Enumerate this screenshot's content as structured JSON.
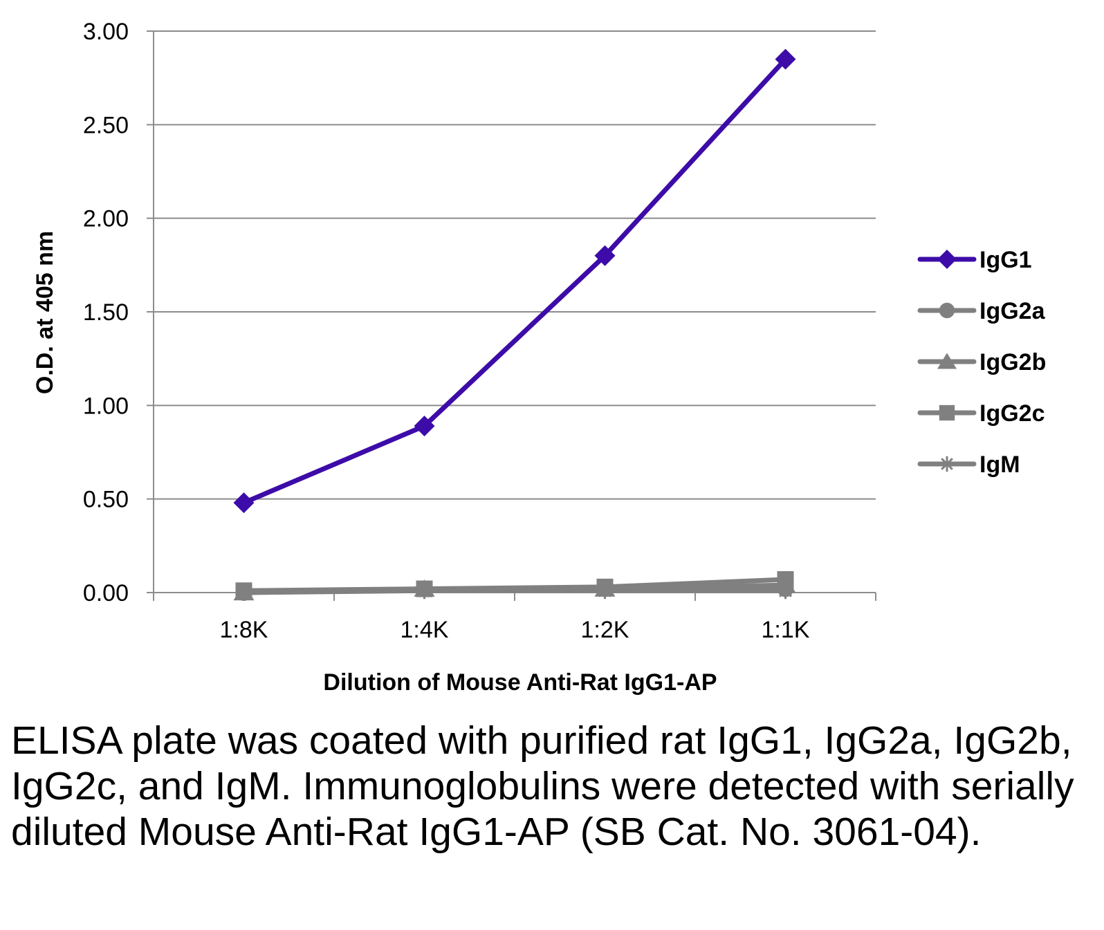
{
  "chart_data": {
    "type": "line",
    "title": "",
    "xlabel": "Dilution of Mouse Anti-Rat IgG1-AP",
    "ylabel": "O.D. at 405 nm",
    "categories": [
      "1:8K",
      "1:4K",
      "1:2K",
      "1:1K"
    ],
    "ylim": [
      0,
      3
    ],
    "yticks": [
      "0.00",
      "0.50",
      "1.00",
      "1.50",
      "2.00",
      "2.50",
      "3.00"
    ],
    "grid": "horizontal",
    "legend": "right",
    "series": [
      {
        "name": "IgG1",
        "marker": "diamond",
        "color": "#3d0ca8",
        "values": [
          0.48,
          0.89,
          1.8,
          2.85
        ]
      },
      {
        "name": "IgG2a",
        "marker": "circle",
        "color": "#808080",
        "values": [
          0.0,
          0.02,
          0.02,
          0.02
        ]
      },
      {
        "name": "IgG2b",
        "marker": "triangle",
        "color": "#808080",
        "values": [
          0.0,
          0.02,
          0.02,
          0.04
        ]
      },
      {
        "name": "IgG2c",
        "marker": "square",
        "color": "#808080",
        "values": [
          0.01,
          0.02,
          0.03,
          0.07
        ]
      },
      {
        "name": "IgM",
        "marker": "asterisk",
        "color": "#808080",
        "values": [
          0.0,
          0.01,
          0.01,
          0.01
        ]
      }
    ]
  },
  "caption": "ELISA plate was coated with purified rat IgG1, IgG2a, IgG2b, IgG2c, and IgM.  Immunoglobulins were detected with serially diluted Mouse Anti-Rat IgG1-AP (SB Cat. No. 3061-04)."
}
